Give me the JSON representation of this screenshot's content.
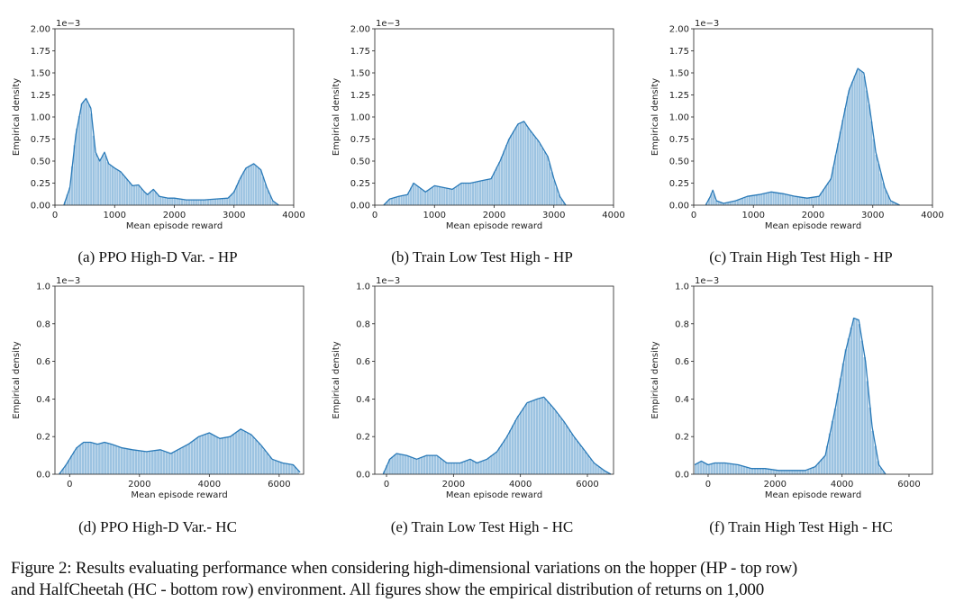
{
  "colors": {
    "bar": "#8bb8dc",
    "curve": "#2a7ab8",
    "axis": "#222222"
  },
  "chart_data": [
    {
      "type": "bar+kde",
      "caption": "(a) PPO High-D Var. - HP",
      "xlabel": "Mean episode reward",
      "ylabel": "Empirical density",
      "offset_label": "1e−3",
      "xlim": [
        0,
        4000
      ],
      "ylim": [
        0,
        2.0
      ],
      "xticks": [
        0,
        1000,
        2000,
        3000,
        4000
      ],
      "yticks": [
        "0.00",
        "0.25",
        "0.50",
        "0.75",
        "1.00",
        "1.25",
        "1.50",
        "1.75",
        "2.00"
      ],
      "bin": 40,
      "kde": [
        [
          150,
          0
        ],
        [
          250,
          0.2
        ],
        [
          350,
          0.8
        ],
        [
          450,
          1.15
        ],
        [
          520,
          1.21
        ],
        [
          600,
          1.1
        ],
        [
          680,
          0.6
        ],
        [
          750,
          0.5
        ],
        [
          830,
          0.6
        ],
        [
          900,
          0.47
        ],
        [
          1000,
          0.42
        ],
        [
          1100,
          0.38
        ],
        [
          1200,
          0.3
        ],
        [
          1300,
          0.22
        ],
        [
          1400,
          0.23
        ],
        [
          1500,
          0.15
        ],
        [
          1550,
          0.12
        ],
        [
          1650,
          0.18
        ],
        [
          1750,
          0.1
        ],
        [
          1900,
          0.08
        ],
        [
          2000,
          0.08
        ],
        [
          2200,
          0.06
        ],
        [
          2500,
          0.06
        ],
        [
          2700,
          0.07
        ],
        [
          2900,
          0.08
        ],
        [
          3000,
          0.15
        ],
        [
          3100,
          0.3
        ],
        [
          3200,
          0.42
        ],
        [
          3330,
          0.47
        ],
        [
          3450,
          0.4
        ],
        [
          3550,
          0.2
        ],
        [
          3650,
          0.05
        ],
        [
          3750,
          0
        ]
      ]
    },
    {
      "type": "bar+kde",
      "caption": "(b) Train Low Test High - HP",
      "xlabel": "Mean episode reward",
      "ylabel": "Empirical density",
      "offset_label": "1e−3",
      "xlim": [
        0,
        4000
      ],
      "ylim": [
        0,
        2.0
      ],
      "xticks": [
        0,
        1000,
        2000,
        3000,
        4000
      ],
      "yticks": [
        "0.00",
        "0.25",
        "0.50",
        "0.75",
        "1.00",
        "1.25",
        "1.50",
        "1.75",
        "2.00"
      ],
      "bin": 40,
      "kde": [
        [
          150,
          0
        ],
        [
          250,
          0.07
        ],
        [
          400,
          0.1
        ],
        [
          550,
          0.12
        ],
        [
          650,
          0.25
        ],
        [
          750,
          0.2
        ],
        [
          850,
          0.15
        ],
        [
          1000,
          0.22
        ],
        [
          1150,
          0.2
        ],
        [
          1300,
          0.18
        ],
        [
          1450,
          0.25
        ],
        [
          1600,
          0.25
        ],
        [
          1800,
          0.28
        ],
        [
          1950,
          0.3
        ],
        [
          2100,
          0.5
        ],
        [
          2250,
          0.75
        ],
        [
          2400,
          0.92
        ],
        [
          2500,
          0.95
        ],
        [
          2600,
          0.85
        ],
        [
          2750,
          0.72
        ],
        [
          2900,
          0.55
        ],
        [
          3000,
          0.3
        ],
        [
          3100,
          0.1
        ],
        [
          3200,
          0
        ]
      ]
    },
    {
      "type": "bar+kde",
      "caption": "(c) Train High Test High - HP",
      "xlabel": "Mean episode reward",
      "ylabel": "Empirical density",
      "offset_label": "1e−3",
      "xlim": [
        0,
        4000
      ],
      "ylim": [
        0,
        2.0
      ],
      "xticks": [
        0,
        1000,
        2000,
        3000,
        4000
      ],
      "yticks": [
        "0.00",
        "0.25",
        "0.50",
        "0.75",
        "1.00",
        "1.25",
        "1.50",
        "1.75",
        "2.00"
      ],
      "bin": 40,
      "kde": [
        [
          200,
          0
        ],
        [
          280,
          0.1
        ],
        [
          320,
          0.17
        ],
        [
          380,
          0.05
        ],
        [
          500,
          0.02
        ],
        [
          700,
          0.05
        ],
        [
          900,
          0.1
        ],
        [
          1100,
          0.12
        ],
        [
          1300,
          0.15
        ],
        [
          1500,
          0.13
        ],
        [
          1700,
          0.1
        ],
        [
          1900,
          0.08
        ],
        [
          2100,
          0.1
        ],
        [
          2300,
          0.3
        ],
        [
          2450,
          0.8
        ],
        [
          2600,
          1.3
        ],
        [
          2750,
          1.55
        ],
        [
          2850,
          1.5
        ],
        [
          2950,
          1.1
        ],
        [
          3050,
          0.6
        ],
        [
          3200,
          0.2
        ],
        [
          3300,
          0.05
        ],
        [
          3450,
          0
        ]
      ]
    },
    {
      "type": "bar+kde",
      "caption": "(d) PPO High-D Var.- HC",
      "xlabel": "Mean episode reward",
      "ylabel": "Empirical density",
      "offset_label": "1e−3",
      "xlim": [
        -420,
        6700
      ],
      "ylim": [
        0,
        1.0
      ],
      "xticks": [
        0,
        2000,
        4000,
        6000
      ],
      "yticks": [
        "0.0",
        "0.2",
        "0.4",
        "0.6",
        "0.8",
        "1.0"
      ],
      "bin": 80,
      "kde": [
        [
          -300,
          0
        ],
        [
          -100,
          0.05
        ],
        [
          200,
          0.14
        ],
        [
          400,
          0.17
        ],
        [
          600,
          0.17
        ],
        [
          800,
          0.16
        ],
        [
          1000,
          0.17
        ],
        [
          1200,
          0.16
        ],
        [
          1500,
          0.14
        ],
        [
          1800,
          0.13
        ],
        [
          2200,
          0.12
        ],
        [
          2600,
          0.13
        ],
        [
          2900,
          0.11
        ],
        [
          3100,
          0.13
        ],
        [
          3400,
          0.16
        ],
        [
          3700,
          0.2
        ],
        [
          4000,
          0.22
        ],
        [
          4300,
          0.19
        ],
        [
          4600,
          0.2
        ],
        [
          4900,
          0.24
        ],
        [
          5200,
          0.21
        ],
        [
          5500,
          0.15
        ],
        [
          5800,
          0.08
        ],
        [
          6100,
          0.06
        ],
        [
          6400,
          0.05
        ],
        [
          6600,
          0.01
        ]
      ]
    },
    {
      "type": "bar+kde",
      "caption": "(e) Train Low Test High - HC",
      "xlabel": "Mean episode reward",
      "ylabel": "Empirical density",
      "offset_label": "1e−3",
      "xlim": [
        -350,
        6780
      ],
      "ylim": [
        0,
        1.0
      ],
      "xticks": [
        0,
        2000,
        4000,
        6000
      ],
      "yticks": [
        "0.0",
        "0.2",
        "0.4",
        "0.6",
        "0.8",
        "1.0"
      ],
      "bin": 80,
      "kde": [
        [
          -100,
          0
        ],
        [
          100,
          0.08
        ],
        [
          300,
          0.11
        ],
        [
          600,
          0.1
        ],
        [
          900,
          0.08
        ],
        [
          1200,
          0.1
        ],
        [
          1500,
          0.1
        ],
        [
          1800,
          0.06
        ],
        [
          2200,
          0.06
        ],
        [
          2500,
          0.08
        ],
        [
          2700,
          0.06
        ],
        [
          3000,
          0.08
        ],
        [
          3300,
          0.12
        ],
        [
          3600,
          0.2
        ],
        [
          3900,
          0.3
        ],
        [
          4200,
          0.38
        ],
        [
          4500,
          0.4
        ],
        [
          4700,
          0.41
        ],
        [
          5000,
          0.35
        ],
        [
          5300,
          0.28
        ],
        [
          5600,
          0.2
        ],
        [
          5900,
          0.13
        ],
        [
          6200,
          0.06
        ],
        [
          6500,
          0.02
        ],
        [
          6700,
          0
        ]
      ]
    },
    {
      "type": "bar+kde",
      "caption": "(f) Train High Test High - HC",
      "xlabel": "Mean episode reward",
      "ylabel": "Empirical density",
      "offset_label": "1e−3",
      "xlim": [
        -430,
        6700
      ],
      "ylim": [
        0,
        1.0
      ],
      "xticks": [
        0,
        2000,
        4000,
        6000
      ],
      "yticks": [
        "0.0",
        "0.2",
        "0.4",
        "0.6",
        "0.8",
        "1.0"
      ],
      "bin": 80,
      "kde": [
        [
          -400,
          0.05
        ],
        [
          -200,
          0.07
        ],
        [
          0,
          0.05
        ],
        [
          200,
          0.06
        ],
        [
          500,
          0.06
        ],
        [
          900,
          0.05
        ],
        [
          1300,
          0.03
        ],
        [
          1700,
          0.03
        ],
        [
          2100,
          0.02
        ],
        [
          2500,
          0.02
        ],
        [
          2900,
          0.02
        ],
        [
          3200,
          0.04
        ],
        [
          3500,
          0.1
        ],
        [
          3800,
          0.35
        ],
        [
          4100,
          0.65
        ],
        [
          4350,
          0.83
        ],
        [
          4500,
          0.82
        ],
        [
          4700,
          0.6
        ],
        [
          4900,
          0.25
        ],
        [
          5100,
          0.05
        ],
        [
          5300,
          0
        ]
      ]
    }
  ],
  "figure_caption": {
    "line1": "Figure 2: Results evaluating performance when considering high-dimensional variations on the hopper (HP - top row)",
    "line2": "and HalfCheetah (HC - bottom row) environment. All figures show the empirical distribution of returns on 1,000"
  }
}
